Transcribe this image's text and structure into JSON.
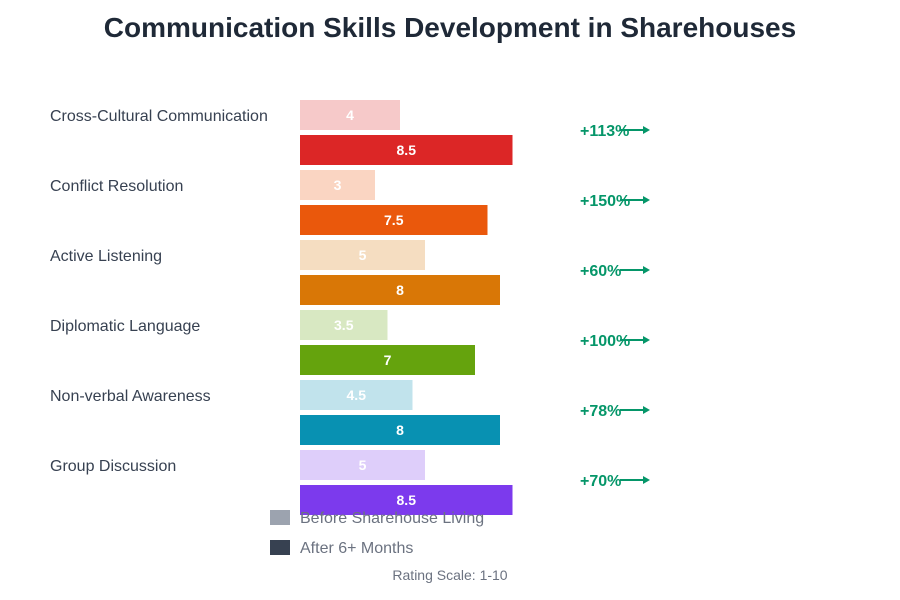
{
  "chart_data": {
    "type": "bar",
    "orientation": "horizontal",
    "title": "Communication Skills Development in Sharehouses",
    "categories": [
      "Cross-Cultural Communication",
      "Conflict Resolution",
      "Active Listening",
      "Diplomatic Language",
      "Non-verbal Awareness",
      "Group Discussion"
    ],
    "series": [
      {
        "name": "Before Sharehouse Living",
        "values": [
          4,
          3,
          5,
          3.5,
          4.5,
          5
        ],
        "legend_color": "#9ca3af"
      },
      {
        "name": "After 6+ Months",
        "values": [
          8.5,
          7.5,
          8,
          7,
          8,
          8.5
        ],
        "legend_color": "#374151"
      }
    ],
    "category_colors": [
      "#dc2626",
      "#ea580c",
      "#d97706",
      "#65a30d",
      "#0891b2",
      "#7c3aed"
    ],
    "change_labels": [
      "+113%",
      "+150%",
      "+60%",
      "+100%",
      "+78%",
      "+70%"
    ],
    "change_color": "#059669",
    "xlim": [
      0,
      10
    ],
    "grid": false,
    "legend_position": "bottom",
    "note": "Rating Scale: 1-10"
  }
}
